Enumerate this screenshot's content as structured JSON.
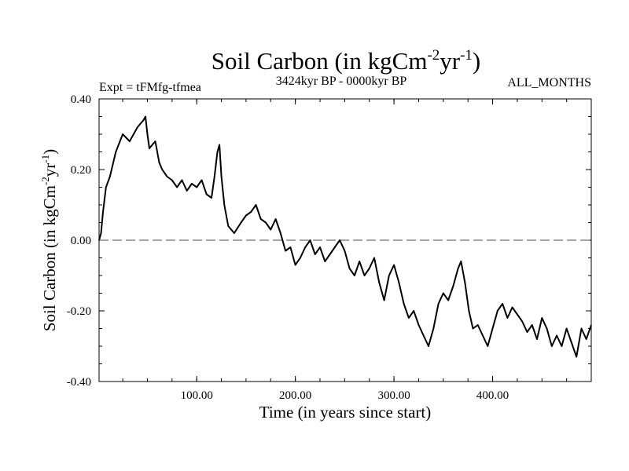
{
  "chart_data": {
    "type": "line",
    "title": "Soil Carbon (in kgCm",
    "title_sup1": "-2",
    "title_mid": "yr",
    "title_sup2": "-1",
    "title_end": ")",
    "left_note": "Expt = tFMfg-tfmea",
    "center_note": "3424kyr BP - 0000kyr BP",
    "right_note": "ALL_MONTHS",
    "xlabel": "Time (in years since start)",
    "ylabel": "Soil Carbon (in kgCm",
    "ylabel_sup1": "-2",
    "ylabel_mid": "yr",
    "ylabel_sup2": "-1",
    "ylabel_end": ")",
    "xlim": [
      1,
      500
    ],
    "ylim": [
      -0.4,
      0.4
    ],
    "xticks": [
      100,
      200,
      300,
      400
    ],
    "xtick_labels": [
      "100.00",
      "200.00",
      "300.00",
      "400.00"
    ],
    "yticks": [
      0.4,
      0.2,
      0.0,
      -0.2,
      -0.4
    ],
    "ytick_labels": [
      "0.40",
      "0.20",
      "0.00",
      "-0.20",
      "-0.40"
    ],
    "reference_line": {
      "y": 0.0,
      "style": "dashed",
      "color": "#888888"
    },
    "line_color": "#000000",
    "series": [
      {
        "name": "Soil Carbon",
        "x": [
          1,
          3,
          5,
          8,
          12,
          18,
          25,
          32,
          40,
          46,
          48,
          50,
          52,
          55,
          58,
          62,
          65,
          70,
          75,
          80,
          85,
          90,
          95,
          100,
          105,
          110,
          115,
          118,
          121,
          123,
          125,
          128,
          132,
          138,
          145,
          150,
          155,
          160,
          165,
          170,
          175,
          180,
          185,
          190,
          195,
          200,
          205,
          210,
          215,
          220,
          225,
          230,
          235,
          240,
          245,
          250,
          255,
          260,
          265,
          270,
          275,
          280,
          285,
          290,
          295,
          300,
          305,
          310,
          315,
          320,
          325,
          330,
          335,
          340,
          345,
          350,
          355,
          360,
          365,
          368,
          372,
          376,
          380,
          385,
          390,
          395,
          400,
          405,
          410,
          415,
          420,
          425,
          430,
          435,
          440,
          445,
          450,
          455,
          460,
          465,
          470,
          475,
          480,
          485,
          490,
          495,
          500
        ],
        "y": [
          0.0,
          0.02,
          0.08,
          0.15,
          0.18,
          0.25,
          0.3,
          0.28,
          0.32,
          0.34,
          0.35,
          0.3,
          0.26,
          0.27,
          0.28,
          0.22,
          0.2,
          0.18,
          0.17,
          0.15,
          0.17,
          0.14,
          0.16,
          0.15,
          0.17,
          0.13,
          0.12,
          0.18,
          0.25,
          0.27,
          0.18,
          0.1,
          0.04,
          0.02,
          0.05,
          0.07,
          0.08,
          0.1,
          0.06,
          0.05,
          0.03,
          0.06,
          0.02,
          -0.03,
          -0.02,
          -0.07,
          -0.05,
          -0.02,
          0.0,
          -0.04,
          -0.02,
          -0.06,
          -0.04,
          -0.02,
          0.0,
          -0.03,
          -0.08,
          -0.1,
          -0.06,
          -0.1,
          -0.08,
          -0.05,
          -0.12,
          -0.17,
          -0.1,
          -0.07,
          -0.12,
          -0.18,
          -0.22,
          -0.2,
          -0.24,
          -0.27,
          -0.3,
          -0.25,
          -0.18,
          -0.15,
          -0.17,
          -0.13,
          -0.08,
          -0.06,
          -0.12,
          -0.2,
          -0.25,
          -0.24,
          -0.27,
          -0.3,
          -0.25,
          -0.2,
          -0.18,
          -0.22,
          -0.19,
          -0.21,
          -0.23,
          -0.26,
          -0.24,
          -0.28,
          -0.22,
          -0.25,
          -0.3,
          -0.27,
          -0.3,
          -0.25,
          -0.29,
          -0.33,
          -0.25,
          -0.28,
          -0.24
        ]
      }
    ]
  }
}
